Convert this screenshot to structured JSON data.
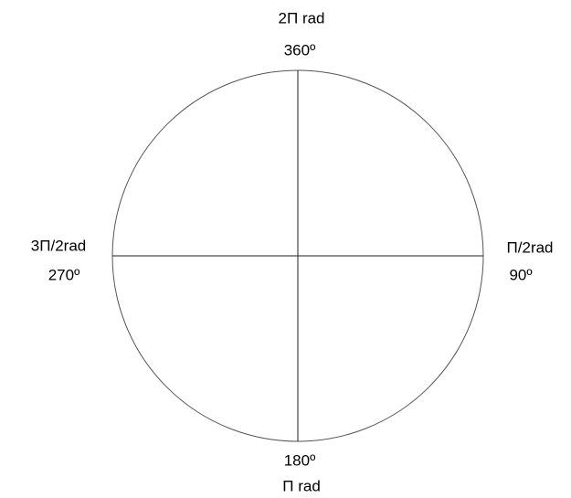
{
  "labels": {
    "top": {
      "rad": "2Π rad",
      "deg": "360º"
    },
    "right": {
      "rad": "Π/2rad",
      "deg": "90º"
    },
    "bottom": {
      "rad": "Π rad",
      "deg": "180º"
    },
    "left": {
      "rad": "3Π/2rad",
      "deg": "270º"
    }
  }
}
